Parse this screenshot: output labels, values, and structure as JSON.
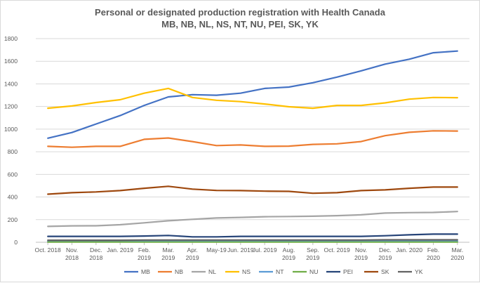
{
  "chart_data": {
    "type": "line",
    "title": "Personal or designated production registration with Health Canada",
    "subtitle": "MB, NB, NL, NS, NT, NU, PEI, SK, YK",
    "xlabel": "",
    "ylabel": "",
    "ylim": [
      0,
      1800
    ],
    "yticks": [
      "0",
      "200",
      "400",
      "600",
      "800",
      "1000",
      "1200",
      "1400",
      "1600",
      "1800"
    ],
    "grid": true,
    "legend_position": "bottom",
    "categories": [
      [
        "Oct. 2018"
      ],
      [
        "Nov.",
        "2018"
      ],
      [
        "Dec.",
        "2018"
      ],
      [
        "Jan. 2019"
      ],
      [
        "Feb.",
        "2019"
      ],
      [
        "Mar.",
        "2019"
      ],
      [
        "Apr.",
        "2019"
      ],
      [
        "May-19"
      ],
      [
        "Jun. 2019"
      ],
      [
        "Jul. 2019"
      ],
      [
        "Aug.",
        "2019"
      ],
      [
        "Sep.",
        "2019"
      ],
      [
        "Oct. 2019"
      ],
      [
        "Nov.",
        "2019"
      ],
      [
        "Dec.",
        "2019"
      ],
      [
        "Jan. 2020"
      ],
      [
        "Feb.",
        "2020"
      ],
      [
        "Mar.",
        "2020"
      ]
    ],
    "series": [
      {
        "name": "MB",
        "color": "#4472C4",
        "values": [
          920,
          970,
          1045,
          1120,
          1210,
          1285,
          1305,
          1300,
          1318,
          1360,
          1372,
          1410,
          1460,
          1515,
          1575,
          1618,
          1675,
          1690
        ]
      },
      {
        "name": "NB",
        "color": "#ED7D31",
        "values": [
          848,
          840,
          848,
          848,
          910,
          922,
          890,
          855,
          860,
          848,
          850,
          865,
          870,
          890,
          942,
          972,
          985,
          983
        ]
      },
      {
        "name": "NL",
        "color": "#A5A5A5",
        "values": [
          140,
          145,
          146,
          155,
          172,
          190,
          203,
          215,
          220,
          226,
          228,
          230,
          235,
          243,
          258,
          262,
          264,
          272
        ]
      },
      {
        "name": "NS",
        "color": "#FFC000",
        "values": [
          1185,
          1205,
          1235,
          1260,
          1318,
          1360,
          1280,
          1255,
          1243,
          1222,
          1198,
          1185,
          1210,
          1210,
          1232,
          1265,
          1280,
          1278
        ]
      },
      {
        "name": "NT",
        "color": "#5B9BD5",
        "values": [
          8,
          8,
          8,
          8,
          9,
          9,
          9,
          9,
          9,
          9,
          9,
          9,
          9,
          9,
          10,
          10,
          10,
          10
        ]
      },
      {
        "name": "NU",
        "color": "#70AD47",
        "values": [
          2,
          2,
          2,
          2,
          2,
          2,
          2,
          2,
          2,
          2,
          2,
          2,
          2,
          2,
          2,
          2,
          2,
          2
        ]
      },
      {
        "name": "PEI",
        "color": "#264478",
        "values": [
          52,
          52,
          52,
          52,
          55,
          60,
          48,
          48,
          52,
          52,
          52,
          52,
          52,
          52,
          58,
          66,
          72,
          72
        ]
      },
      {
        "name": "SK",
        "color": "#9E480E",
        "values": [
          425,
          438,
          445,
          457,
          477,
          495,
          470,
          458,
          457,
          452,
          450,
          433,
          438,
          457,
          463,
          477,
          488,
          488
        ]
      },
      {
        "name": "YK",
        "color": "#636363",
        "values": [
          18,
          18,
          18,
          18,
          20,
          20,
          20,
          20,
          20,
          20,
          20,
          20,
          20,
          20,
          22,
          22,
          22,
          22
        ]
      }
    ]
  }
}
